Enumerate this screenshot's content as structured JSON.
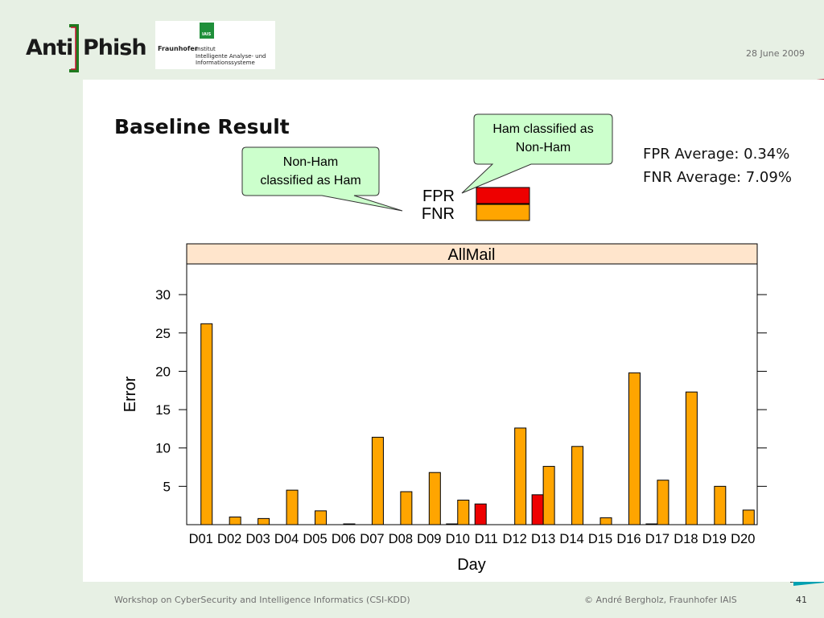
{
  "header": {
    "logo_left": "Anti",
    "logo_right": "Phish",
    "partner": {
      "name": "Fraunhofer",
      "mark": "IAIS",
      "institute": "Institut\nIntelligente Analyse- und\nInformationssysteme"
    },
    "date": "28 June 2009"
  },
  "slide": {
    "title": "Baseline Result",
    "callout_ham": "Ham classified as Non-Ham",
    "callout_nonham": "Non-Ham classified as Ham",
    "fpr_average": "FPR Average: 0.34%",
    "fnr_average": "FNR Average: 7.09%"
  },
  "footer": {
    "workshop": "Workshop on CyberSecurity and Intelligence Informatics (CSI-KDD)",
    "copyright": "© André Bergholz, Fraunhofer IAIS",
    "page": "41"
  },
  "colors": {
    "fpr": "#ee0000",
    "fnr": "#ffa500",
    "strip": "#ffe5cc",
    "callout": "#ccffcc",
    "background": "#e7f0e4"
  },
  "chart_data": {
    "type": "bar",
    "title": "AllMail",
    "xlabel": "Day",
    "ylabel": "Error",
    "ylim": [
      0,
      34
    ],
    "yticks": [
      5,
      10,
      15,
      20,
      25,
      30
    ],
    "legend": {
      "placement": "top",
      "entries": [
        "FPR",
        "FNR"
      ]
    },
    "categories": [
      "D01",
      "D02",
      "D03",
      "D04",
      "D05",
      "D06",
      "D07",
      "D08",
      "D09",
      "D10",
      "D11",
      "D12",
      "D13",
      "D14",
      "D15",
      "D16",
      "D17",
      "D18",
      "D19",
      "D20"
    ],
    "series": [
      {
        "name": "FPR",
        "color": "#ee0000",
        "values": [
          0,
          0,
          0,
          0,
          0,
          0,
          0,
          0,
          0,
          0.1,
          2.7,
          0,
          3.9,
          0,
          0,
          0,
          0.1,
          0,
          0,
          0
        ]
      },
      {
        "name": "FNR",
        "color": "#ffa500",
        "values": [
          26.2,
          1.0,
          0.8,
          4.5,
          1.8,
          0.1,
          11.4,
          4.3,
          6.8,
          3.2,
          0,
          12.6,
          7.6,
          10.2,
          0.9,
          19.8,
          5.8,
          17.3,
          5.0,
          1.9
        ]
      }
    ]
  }
}
